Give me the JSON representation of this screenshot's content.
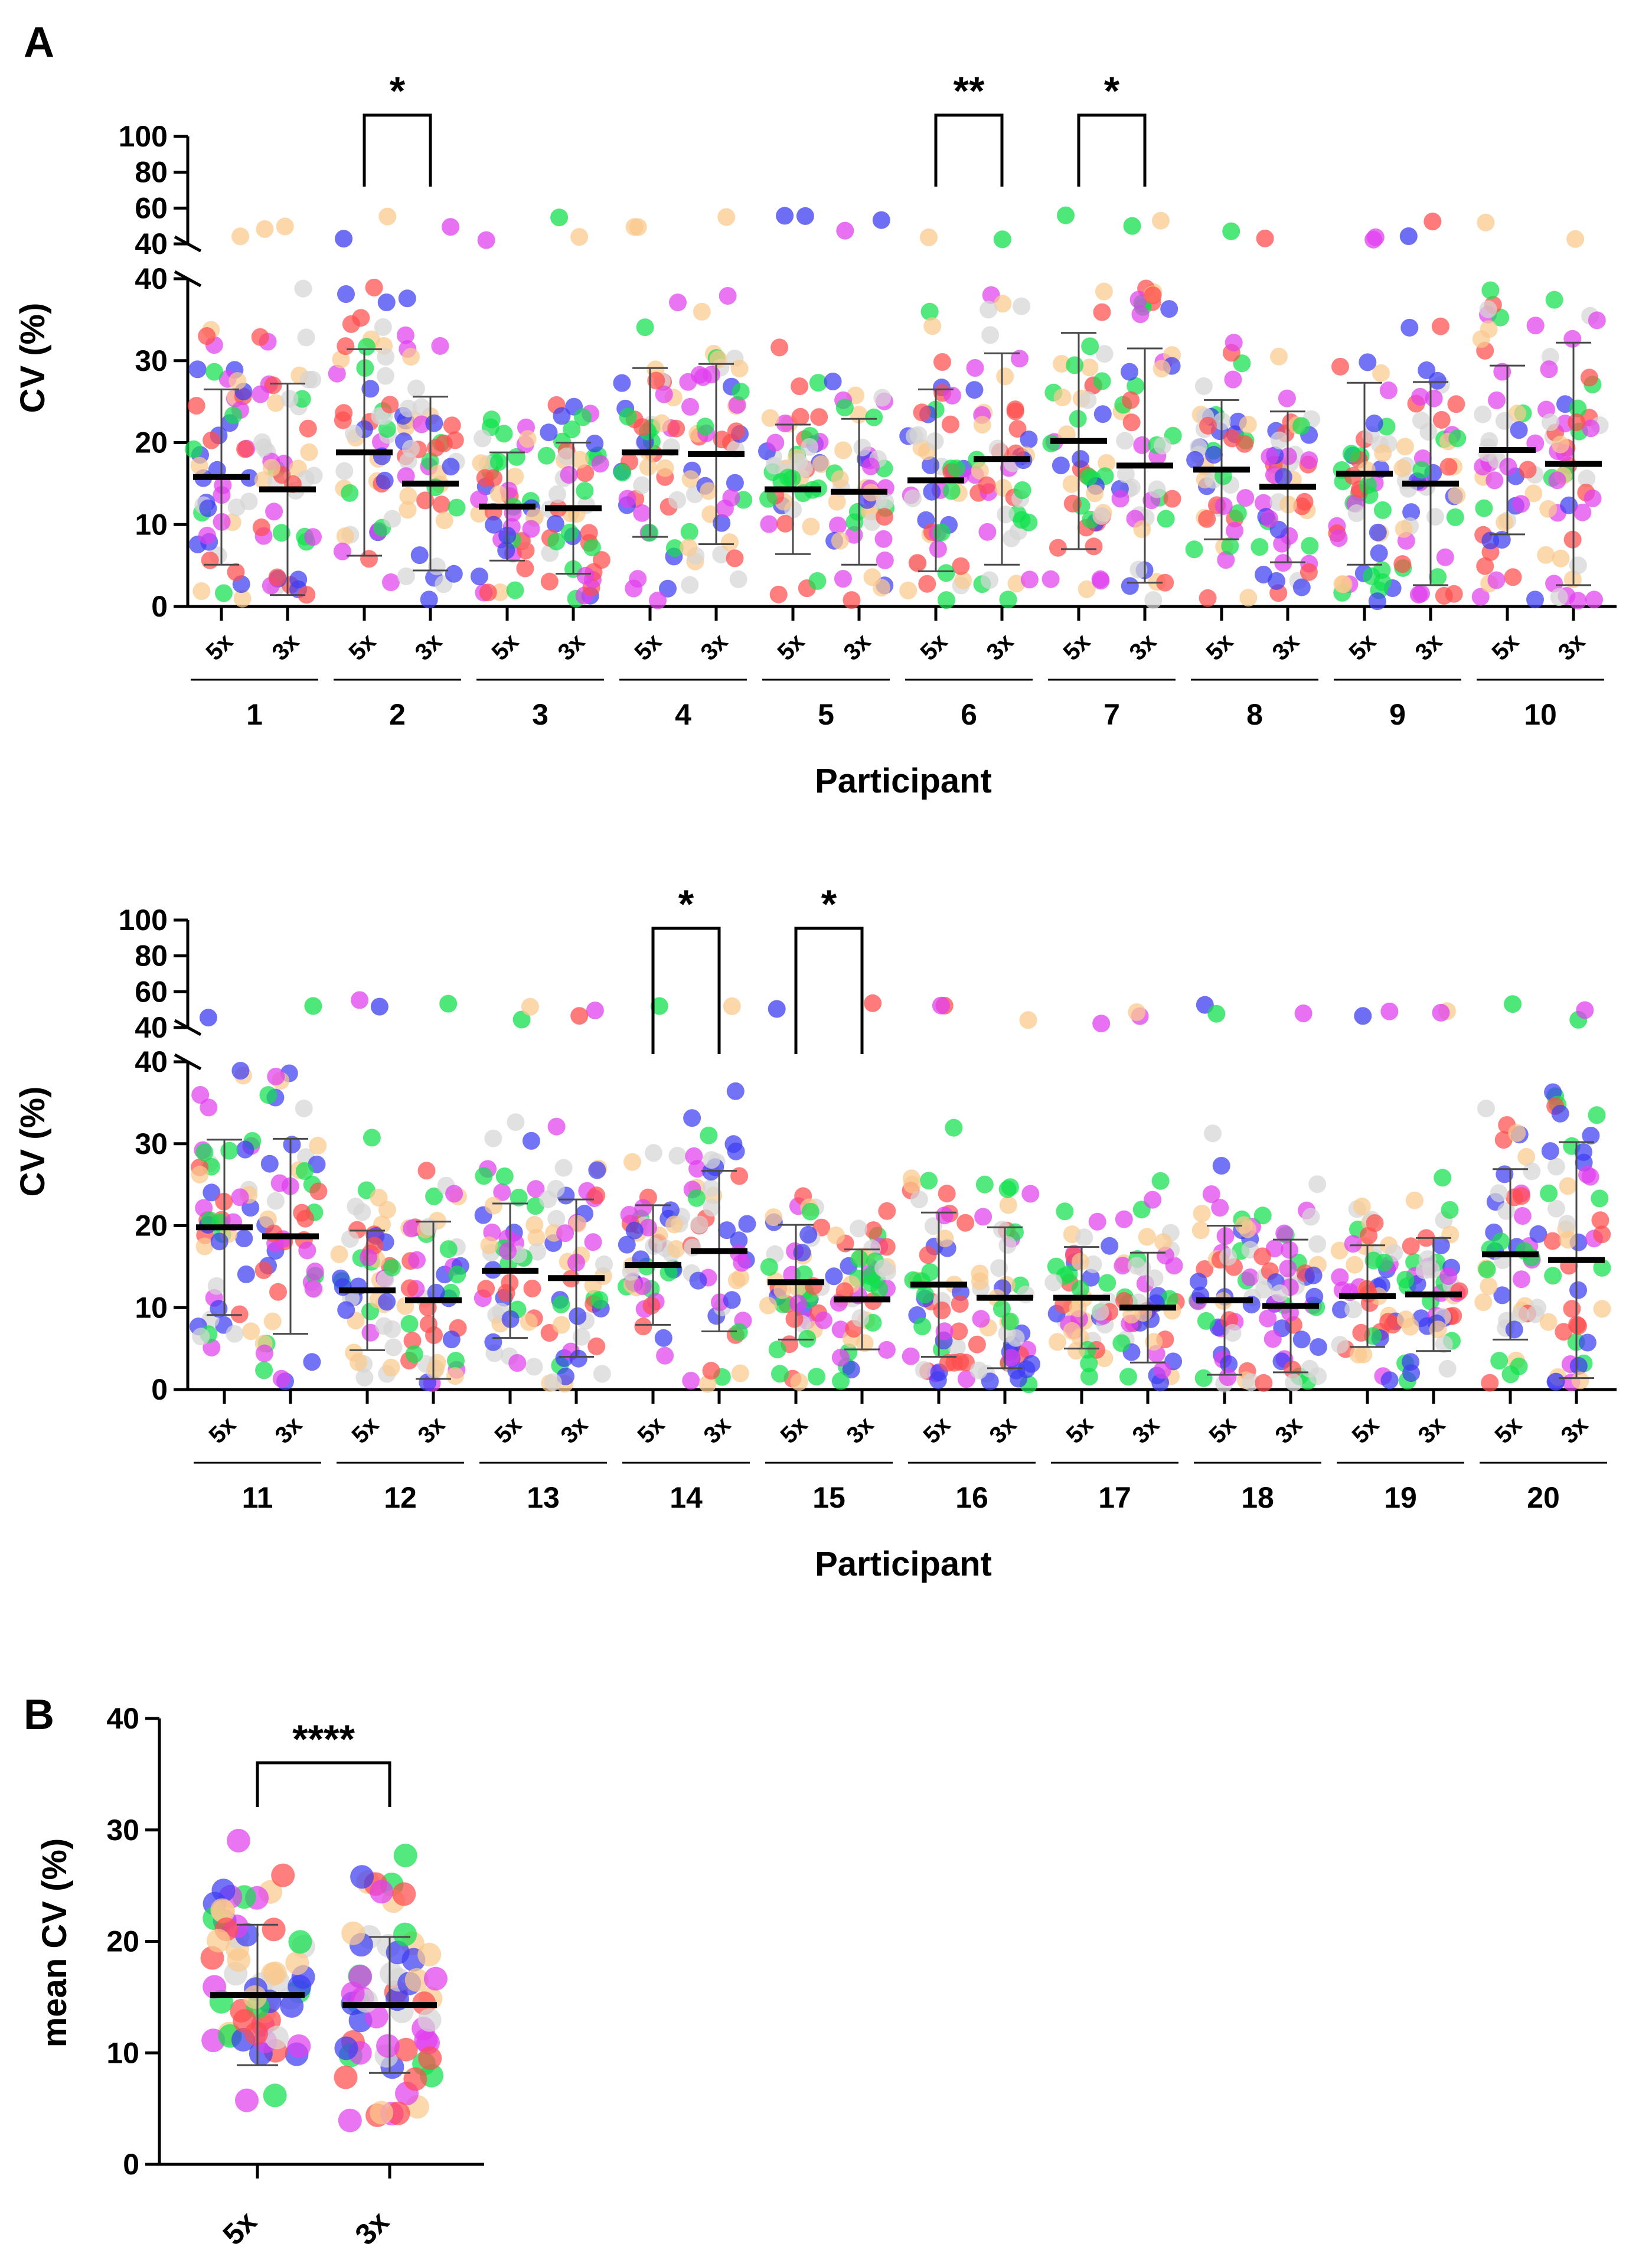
{
  "figure": {
    "panel_a_letter": "A",
    "panel_b_letter": "B"
  },
  "colors": {
    "palette": [
      "#ff4d4d",
      "#3d3df2",
      "#11e04c",
      "#e040ef",
      "#fbc98d",
      "#d6d6d6"
    ],
    "mean_bar": "#000000",
    "error_bar": "#4a4a4a"
  },
  "chart_data": [
    {
      "id": "panel-a-top",
      "type": "scatter",
      "title": "",
      "xlabel": "Participant",
      "ylabel": "CV (%)",
      "conditions": [
        "5x",
        "3x"
      ],
      "participants": [
        "1",
        "2",
        "3",
        "4",
        "5",
        "6",
        "7",
        "8",
        "9",
        "10"
      ],
      "y_lower_ticks": [
        "0",
        "10",
        "20",
        "30",
        "40"
      ],
      "y_upper_ticks": [
        "40",
        "60",
        "80",
        "100"
      ],
      "ylim_lower": [
        0,
        40
      ],
      "ylim_upper": [
        40,
        100
      ],
      "groups": [
        {
          "participant": "1",
          "condition": "5x",
          "mean": 15.8,
          "sd": 10.7
        },
        {
          "participant": "1",
          "condition": "3x",
          "mean": 14.3,
          "sd": 12.9
        },
        {
          "participant": "2",
          "condition": "5x",
          "mean": 18.8,
          "sd": 12.6
        },
        {
          "participant": "2",
          "condition": "3x",
          "mean": 15.0,
          "sd": 10.6
        },
        {
          "participant": "3",
          "condition": "5x",
          "mean": 12.2,
          "sd": 6.6
        },
        {
          "participant": "3",
          "condition": "3x",
          "mean": 12.0,
          "sd": 8.0
        },
        {
          "participant": "4",
          "condition": "5x",
          "mean": 18.8,
          "sd": 10.3
        },
        {
          "participant": "4",
          "condition": "3x",
          "mean": 18.6,
          "sd": 11.0
        },
        {
          "participant": "5",
          "condition": "5x",
          "mean": 14.3,
          "sd": 7.9
        },
        {
          "participant": "5",
          "condition": "3x",
          "mean": 14.0,
          "sd": 8.9
        },
        {
          "participant": "6",
          "condition": "5x",
          "mean": 15.4,
          "sd": 11.1
        },
        {
          "participant": "6",
          "condition": "3x",
          "mean": 18.0,
          "sd": 12.9
        },
        {
          "participant": "7",
          "condition": "5x",
          "mean": 20.2,
          "sd": 13.2
        },
        {
          "participant": "7",
          "condition": "3x",
          "mean": 17.2,
          "sd": 14.3
        },
        {
          "participant": "8",
          "condition": "5x",
          "mean": 16.7,
          "sd": 8.5
        },
        {
          "participant": "8",
          "condition": "3x",
          "mean": 14.6,
          "sd": 9.2
        },
        {
          "participant": "9",
          "condition": "5x",
          "mean": 16.2,
          "sd": 11.1
        },
        {
          "participant": "9",
          "condition": "3x",
          "mean": 15.0,
          "sd": 12.4
        },
        {
          "participant": "10",
          "condition": "5x",
          "mean": 19.1,
          "sd": 10.3
        },
        {
          "participant": "10",
          "condition": "3x",
          "mean": 17.4,
          "sd": 14.8
        }
      ],
      "significance": [
        {
          "participant": "2",
          "label": "*"
        },
        {
          "participant": "6",
          "label": "**"
        },
        {
          "participant": "7",
          "label": "*"
        }
      ]
    },
    {
      "id": "panel-a-bottom",
      "type": "scatter",
      "title": "",
      "xlabel": "Participant",
      "ylabel": "CV (%)",
      "conditions": [
        "5x",
        "3x"
      ],
      "participants": [
        "11",
        "12",
        "13",
        "14",
        "15",
        "16",
        "17",
        "18",
        "19",
        "20"
      ],
      "y_lower_ticks": [
        "0",
        "10",
        "20",
        "30",
        "40"
      ],
      "y_upper_ticks": [
        "40",
        "60",
        "80",
        "100"
      ],
      "ylim_lower": [
        0,
        40
      ],
      "ylim_upper": [
        40,
        100
      ],
      "groups": [
        {
          "participant": "11",
          "condition": "5x",
          "mean": 19.8,
          "sd": 10.7
        },
        {
          "participant": "11",
          "condition": "3x",
          "mean": 18.7,
          "sd": 11.9
        },
        {
          "participant": "12",
          "condition": "5x",
          "mean": 12.1,
          "sd": 7.3
        },
        {
          "participant": "12",
          "condition": "3x",
          "mean": 10.9,
          "sd": 9.6
        },
        {
          "participant": "13",
          "condition": "5x",
          "mean": 14.5,
          "sd": 8.2
        },
        {
          "participant": "13",
          "condition": "3x",
          "mean": 13.6,
          "sd": 9.6
        },
        {
          "participant": "14",
          "condition": "5x",
          "mean": 15.2,
          "sd": 7.3
        },
        {
          "participant": "14",
          "condition": "3x",
          "mean": 16.9,
          "sd": 9.8
        },
        {
          "participant": "15",
          "condition": "5x",
          "mean": 13.1,
          "sd": 7.0
        },
        {
          "participant": "15",
          "condition": "3x",
          "mean": 11.0,
          "sd": 6.1
        },
        {
          "participant": "16",
          "condition": "5x",
          "mean": 12.8,
          "sd": 8.8
        },
        {
          "participant": "16",
          "condition": "3x",
          "mean": 11.2,
          "sd": 8.6
        },
        {
          "participant": "17",
          "condition": "5x",
          "mean": 11.2,
          "sd": 6.2
        },
        {
          "participant": "17",
          "condition": "3x",
          "mean": 10.0,
          "sd": 6.7
        },
        {
          "participant": "18",
          "condition": "5x",
          "mean": 10.9,
          "sd": 9.1
        },
        {
          "participant": "18",
          "condition": "3x",
          "mean": 10.2,
          "sd": 8.1
        },
        {
          "participant": "19",
          "condition": "5x",
          "mean": 11.4,
          "sd": 6.2
        },
        {
          "participant": "19",
          "condition": "3x",
          "mean": 11.6,
          "sd": 6.9
        },
        {
          "participant": "20",
          "condition": "5x",
          "mean": 16.5,
          "sd": 10.4
        },
        {
          "participant": "20",
          "condition": "3x",
          "mean": 15.8,
          "sd": 14.4
        }
      ],
      "significance": [
        {
          "participant": "14",
          "label": "*"
        },
        {
          "participant": "15",
          "label": "*"
        }
      ]
    },
    {
      "id": "panel-b",
      "type": "scatter",
      "title": "",
      "xlabel": "",
      "ylabel": "mean CV (%)",
      "conditions": [
        "5x",
        "3x"
      ],
      "y_ticks": [
        "0",
        "10",
        "20",
        "30",
        "40"
      ],
      "ylim": [
        0,
        40
      ],
      "groups": [
        {
          "condition": "5x",
          "mean": 15.2,
          "sd": 6.3
        },
        {
          "condition": "3x",
          "mean": 14.3,
          "sd": 6.1
        }
      ],
      "significance": [
        {
          "pair": [
            "5x",
            "3x"
          ],
          "label": "****"
        }
      ]
    }
  ]
}
